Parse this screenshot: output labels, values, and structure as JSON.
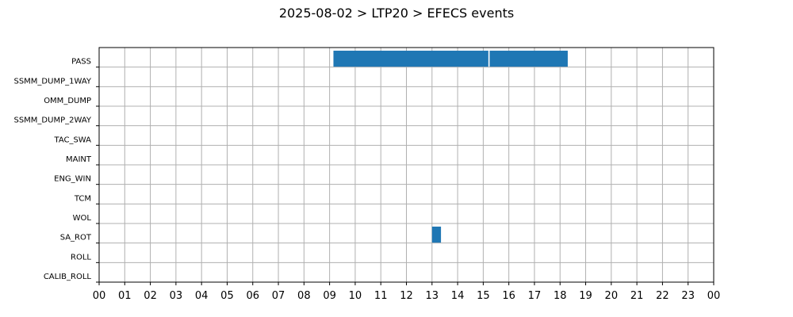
{
  "chart_data": {
    "type": "bar",
    "orientation": "horizontal-timeline",
    "title": "2025-08-02 > LTP20 > EFECS events",
    "xlabel": "",
    "ylabel": "",
    "x_unit": "hour",
    "xlim": [
      0,
      24
    ],
    "x_tick_values": [
      0,
      1,
      2,
      3,
      4,
      5,
      6,
      7,
      8,
      9,
      10,
      11,
      12,
      13,
      14,
      15,
      16,
      17,
      18,
      19,
      20,
      21,
      22,
      23,
      24
    ],
    "x_tick_labels": [
      "00",
      "01",
      "02",
      "03",
      "04",
      "05",
      "06",
      "07",
      "08",
      "09",
      "10",
      "11",
      "12",
      "13",
      "14",
      "15",
      "16",
      "17",
      "18",
      "19",
      "20",
      "21",
      "22",
      "23",
      "00"
    ],
    "categories": [
      "PASS",
      "SSMM_DUMP_1WAY",
      "OMM_DUMP",
      "SSMM_DUMP_2WAY",
      "TAC_SWA",
      "MAINT",
      "ENG_WIN",
      "TCM",
      "WOL",
      "SA_ROT",
      "ROLL",
      "CALIB_ROLL"
    ],
    "events": [
      {
        "category": "PASS",
        "start": 9.15,
        "end": 15.2
      },
      {
        "category": "PASS",
        "start": 15.25,
        "end": 18.3
      },
      {
        "category": "SA_ROT",
        "start": 13.0,
        "end": 13.35
      }
    ],
    "grid": true,
    "legend": "none",
    "bar_color": "#1f77b4",
    "grid_color": "#b0b0b0"
  }
}
